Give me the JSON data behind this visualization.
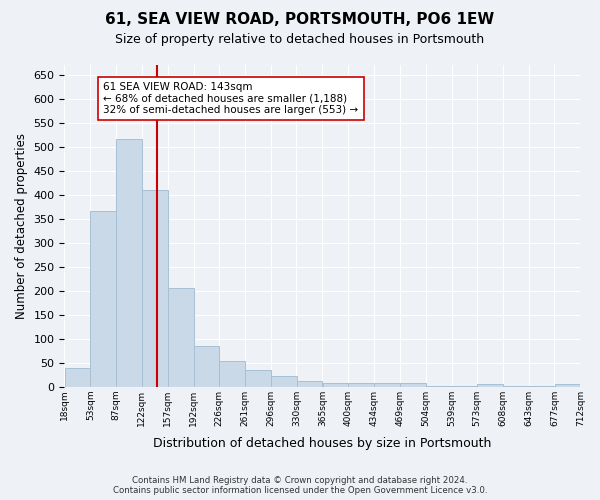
{
  "title": "61, SEA VIEW ROAD, PORTSMOUTH, PO6 1EW",
  "subtitle": "Size of property relative to detached houses in Portsmouth",
  "xlabel": "Distribution of detached houses by size in Portsmouth",
  "ylabel": "Number of detached properties",
  "bar_color": "#c9d9e8",
  "bar_edge_color": "#a8c0d4",
  "background_color": "#eef2f7",
  "grid_color": "#ffffff",
  "vline_x": 143,
  "vline_color": "#cc0000",
  "annotation_text": "61 SEA VIEW ROAD: 143sqm\n← 68% of detached houses are smaller (1,188)\n32% of semi-detached houses are larger (553) →",
  "annotation_box_color": "#ffffff",
  "annotation_box_edge": "#cc0000",
  "footer": "Contains HM Land Registry data © Crown copyright and database right 2024.\nContains public sector information licensed under the Open Government Licence v3.0.",
  "bin_edges": [
    18,
    53,
    87,
    122,
    157,
    192,
    226,
    261,
    296,
    330,
    365,
    400,
    434,
    469,
    504,
    539,
    573,
    608,
    643,
    677,
    712
  ],
  "bin_labels": [
    "18sqm",
    "53sqm",
    "87sqm",
    "122sqm",
    "157sqm",
    "192sqm",
    "226sqm",
    "261sqm",
    "296sqm",
    "330sqm",
    "365sqm",
    "400sqm",
    "434sqm",
    "469sqm",
    "504sqm",
    "539sqm",
    "573sqm",
    "608sqm",
    "643sqm",
    "677sqm",
    "712sqm"
  ],
  "bar_heights": [
    38,
    365,
    515,
    410,
    205,
    84,
    53,
    35,
    22,
    11,
    8,
    8,
    8,
    8,
    1,
    1,
    6,
    1,
    1,
    5
  ],
  "ylim": [
    0,
    670
  ],
  "yticks": [
    0,
    50,
    100,
    150,
    200,
    250,
    300,
    350,
    400,
    450,
    500,
    550,
    600,
    650
  ]
}
